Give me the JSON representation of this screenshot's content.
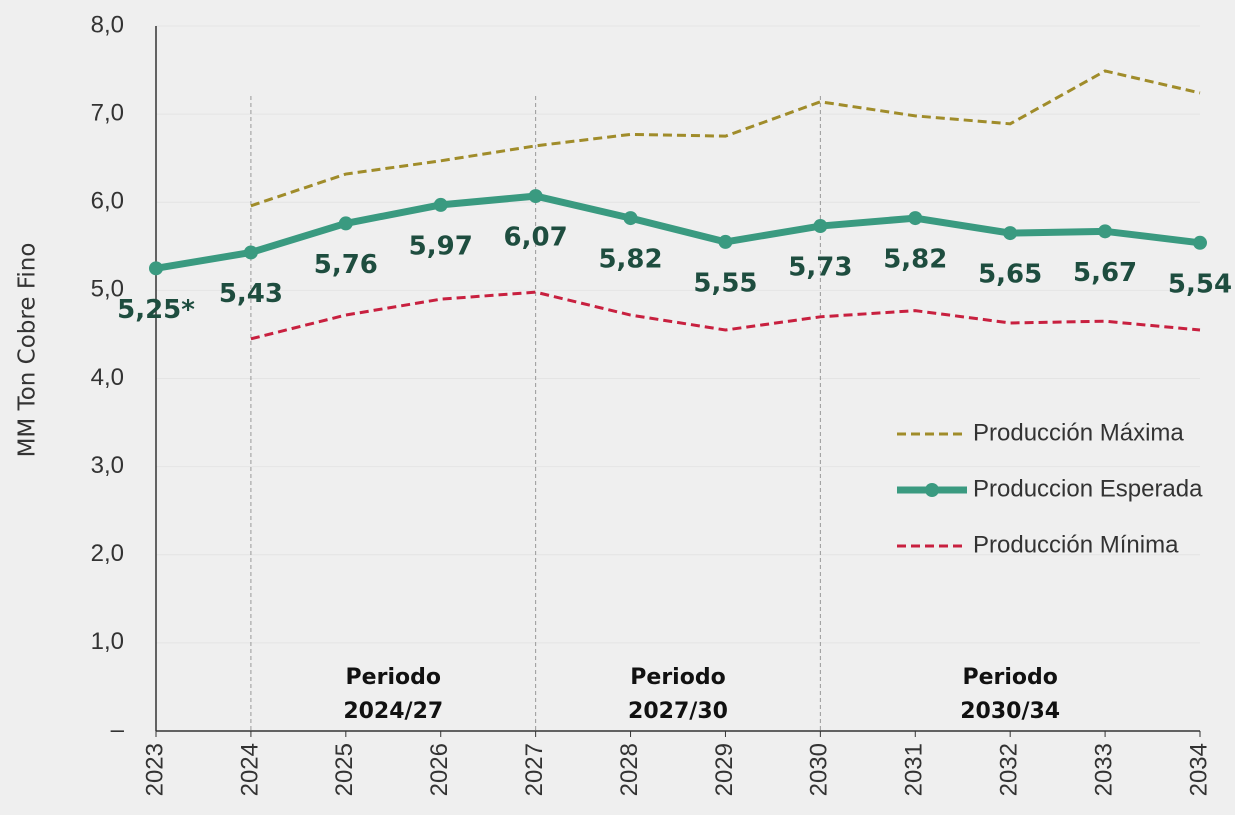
{
  "chart_data": {
    "type": "line",
    "y_axis_label": "MM Ton Cobre Fino",
    "categories": [
      "2023",
      "2024",
      "2025",
      "2026",
      "2027",
      "2028",
      "2029",
      "2030",
      "2031",
      "2032",
      "2033",
      "2034"
    ],
    "series": [
      {
        "name": "Producción Máxima",
        "color": "#a08c2a",
        "style": "dashed",
        "values": [
          null,
          5.96,
          6.32,
          6.47,
          6.64,
          6.77,
          6.75,
          7.14,
          6.98,
          6.89,
          7.49,
          7.24
        ]
      },
      {
        "name": "Produccion Esperada",
        "color": "#3a9a80",
        "style": "solid",
        "markers": true,
        "values": [
          5.25,
          5.43,
          5.76,
          5.97,
          6.07,
          5.82,
          5.55,
          5.73,
          5.82,
          5.65,
          5.67,
          5.54
        ],
        "value_labels": [
          "5,25*",
          "5,43",
          "5,76",
          "5,97",
          "6,07",
          "5,82",
          "5,55",
          "5,73",
          "5,82",
          "5,65",
          "5,67",
          "5,54"
        ]
      },
      {
        "name": "Producción Mínima",
        "color": "#c8203f",
        "style": "dashed",
        "values": [
          null,
          4.45,
          4.72,
          4.9,
          4.98,
          4.72,
          4.55,
          4.7,
          4.77,
          4.63,
          4.65,
          4.55
        ]
      }
    ],
    "ylim": [
      0,
      8
    ],
    "yticks": [
      {
        "value": 0,
        "label": "–"
      },
      {
        "value": 1,
        "label": "1,0"
      },
      {
        "value": 2,
        "label": "2,0"
      },
      {
        "value": 3,
        "label": "3,0"
      },
      {
        "value": 4,
        "label": "4,0"
      },
      {
        "value": 5,
        "label": "5,0"
      },
      {
        "value": 6,
        "label": "6,0"
      },
      {
        "value": 7,
        "label": "7,0"
      },
      {
        "value": 8,
        "label": "8,0"
      }
    ],
    "grid": true,
    "legend": "right",
    "periods": [
      {
        "label": [
          "Periodo",
          "2024/27"
        ],
        "start": "2024",
        "end": "2027"
      },
      {
        "label": [
          "Periodo",
          "2027/30"
        ],
        "start": "2027",
        "end": "2030"
      },
      {
        "label": [
          "Periodo",
          "2030/34"
        ],
        "start": "2030",
        "end": "2034"
      }
    ]
  }
}
